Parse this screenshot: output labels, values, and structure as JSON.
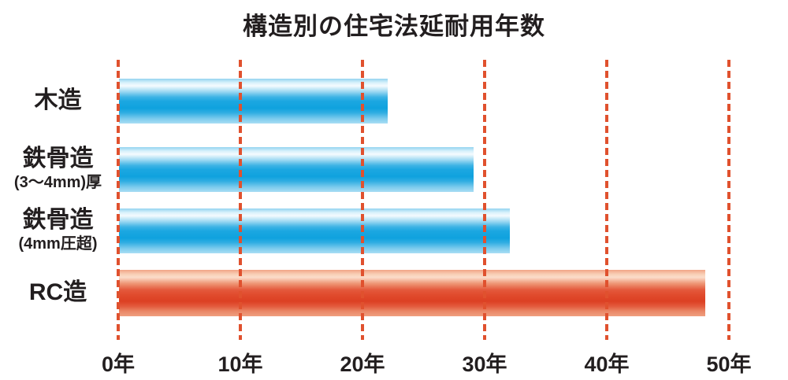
{
  "title": "構造別の住宅法延耐用年数",
  "colors": {
    "background": "#ffffff",
    "bar_blue": "#29abe2",
    "bar_red": "#e04a2c",
    "gridline_red": "#e0512e",
    "text": "#221e1f"
  },
  "chart_data": {
    "type": "bar",
    "orientation": "horizontal",
    "title": "構造別の住宅法延耐用年数",
    "categories": [
      "木造",
      "鉄骨造",
      "鉄骨造",
      "RC造"
    ],
    "category_sublabels": [
      "",
      "(3〜4mm)厚",
      "(4mm圧超)",
      ""
    ],
    "values": [
      22,
      29,
      32,
      48
    ],
    "unit": "年",
    "bar_colors": [
      "blue",
      "blue",
      "blue",
      "red"
    ],
    "x_tick_values": [
      0,
      10,
      20,
      30,
      40,
      50
    ],
    "x_tick_labels": [
      "0年",
      "10年",
      "20年",
      "30年",
      "40年",
      "50年"
    ],
    "x_range": [
      0,
      52
    ],
    "ylabel": "",
    "xlabel": "",
    "legend": "none",
    "grid": "vertical dashed red lines every 10 years, drawn over bars"
  }
}
